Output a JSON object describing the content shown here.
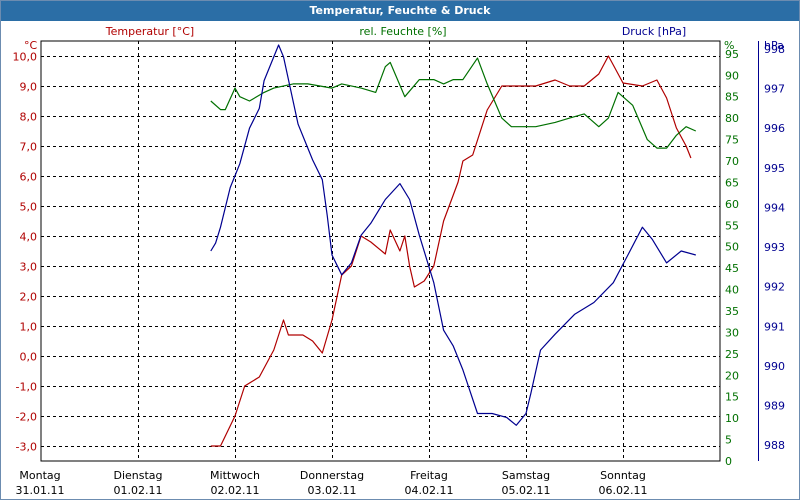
{
  "window": {
    "title": "Temperatur, Feuchte & Druck"
  },
  "colors": {
    "temperature": "#b00000",
    "humidity": "#007000",
    "pressure": "#000090",
    "grid": "#000000",
    "titlebar": "#2b6ea6"
  },
  "chart_data": {
    "type": "line",
    "title": "Temperatur, Feuchte & Druck",
    "grid": true,
    "x": {
      "categories": [
        {
          "day": "Montag",
          "date": "31.01.11"
        },
        {
          "day": "Dienstag",
          "date": "01.02.11"
        },
        {
          "day": "Mittwoch",
          "date": "02.02.11"
        },
        {
          "day": "Donnerstag",
          "date": "03.02.11"
        },
        {
          "day": "Freitag",
          "date": "04.02.11"
        },
        {
          "day": "Samstag",
          "date": "05.02.11"
        },
        {
          "day": "Sonntag",
          "date": "06.02.11"
        }
      ],
      "range_days": [
        0,
        7
      ]
    },
    "axes": {
      "temperature": {
        "label": "Temperatur [°C]",
        "unit": "°C",
        "ylim": [
          -3.5,
          10.5
        ],
        "ticks": [
          "10,0",
          "9,0",
          "8,0",
          "7,0",
          "6,0",
          "5,0",
          "4,0",
          "3,0",
          "2,0",
          "1,0",
          "0,0",
          "-1,0",
          "-2,0",
          "-3,0"
        ]
      },
      "humidity": {
        "label": "rel. Feuchte [%]",
        "unit": "%",
        "ylim": [
          0,
          98
        ],
        "ticks": [
          "95",
          "90",
          "85",
          "80",
          "75",
          "70",
          "65",
          "60",
          "55",
          "50",
          "45",
          "40",
          "35",
          "30",
          "25",
          "20",
          "15",
          "10",
          "5",
          "0"
        ]
      },
      "pressure": {
        "label": "Druck [hPa]",
        "unit": "hPa",
        "ylim": [
          987.6,
          998.2
        ],
        "ticks": [
          "998",
          "997",
          "996",
          "995",
          "994",
          "993",
          "992",
          "991",
          "990",
          "989",
          "988"
        ]
      }
    },
    "series": [
      {
        "name": "Temperatur [°C]",
        "axis": "temperature",
        "points": [
          [
            1.75,
            -3.0
          ],
          [
            1.85,
            -3.0
          ],
          [
            2.0,
            -2.0
          ],
          [
            2.1,
            -1.0
          ],
          [
            2.25,
            -0.7
          ],
          [
            2.4,
            0.2
          ],
          [
            2.5,
            1.2
          ],
          [
            2.55,
            0.7
          ],
          [
            2.7,
            0.7
          ],
          [
            2.8,
            0.5
          ],
          [
            2.9,
            0.1
          ],
          [
            3.0,
            1.2
          ],
          [
            3.1,
            2.7
          ],
          [
            3.2,
            3.0
          ],
          [
            3.3,
            4.0
          ],
          [
            3.4,
            3.8
          ],
          [
            3.55,
            3.4
          ],
          [
            3.6,
            4.2
          ],
          [
            3.7,
            3.5
          ],
          [
            3.75,
            4.0
          ],
          [
            3.8,
            3.0
          ],
          [
            3.85,
            2.3
          ],
          [
            3.95,
            2.5
          ],
          [
            4.05,
            3.0
          ],
          [
            4.15,
            4.5
          ],
          [
            4.3,
            5.8
          ],
          [
            4.35,
            6.5
          ],
          [
            4.45,
            6.7
          ],
          [
            4.6,
            8.2
          ],
          [
            4.75,
            9.0
          ],
          [
            4.9,
            9.0
          ],
          [
            5.1,
            9.0
          ],
          [
            5.3,
            9.2
          ],
          [
            5.45,
            9.0
          ],
          [
            5.6,
            9.0
          ],
          [
            5.75,
            9.4
          ],
          [
            5.85,
            10.0
          ],
          [
            5.9,
            9.7
          ],
          [
            6.0,
            9.1
          ],
          [
            6.2,
            9.0
          ],
          [
            6.35,
            9.2
          ],
          [
            6.45,
            8.6
          ],
          [
            6.55,
            7.6
          ],
          [
            6.65,
            7.0
          ],
          [
            6.7,
            6.6
          ]
        ]
      },
      {
        "name": "rel. Feuchte [%]",
        "axis": "humidity",
        "points": [
          [
            1.75,
            84
          ],
          [
            1.85,
            82
          ],
          [
            1.9,
            82
          ],
          [
            2.0,
            87
          ],
          [
            2.05,
            85
          ],
          [
            2.15,
            84
          ],
          [
            2.3,
            86
          ],
          [
            2.4,
            87
          ],
          [
            2.6,
            88
          ],
          [
            2.75,
            88
          ],
          [
            3.0,
            87
          ],
          [
            3.1,
            88
          ],
          [
            3.3,
            87
          ],
          [
            3.45,
            86
          ],
          [
            3.55,
            92
          ],
          [
            3.6,
            93
          ],
          [
            3.75,
            85
          ],
          [
            3.9,
            89
          ],
          [
            4.05,
            89
          ],
          [
            4.15,
            88
          ],
          [
            4.25,
            89
          ],
          [
            4.35,
            89
          ],
          [
            4.5,
            94
          ],
          [
            4.6,
            88
          ],
          [
            4.75,
            80
          ],
          [
            4.85,
            78
          ],
          [
            5.1,
            78
          ],
          [
            5.3,
            79
          ],
          [
            5.45,
            80
          ],
          [
            5.6,
            81
          ],
          [
            5.75,
            78
          ],
          [
            5.85,
            80
          ],
          [
            5.95,
            86
          ],
          [
            6.1,
            83
          ],
          [
            6.25,
            75
          ],
          [
            6.35,
            73
          ],
          [
            6.45,
            73
          ],
          [
            6.55,
            76
          ],
          [
            6.65,
            78
          ],
          [
            6.75,
            77
          ]
        ]
      },
      {
        "name": "Druck [hPa]",
        "axis": "pressure",
        "points": [
          [
            1.75,
            992.9
          ],
          [
            1.8,
            993.1
          ],
          [
            1.85,
            993.5
          ],
          [
            1.95,
            994.5
          ],
          [
            2.05,
            995.1
          ],
          [
            2.15,
            996.0
          ],
          [
            2.25,
            996.5
          ],
          [
            2.3,
            997.2
          ],
          [
            2.45,
            998.1
          ],
          [
            2.5,
            997.8
          ],
          [
            2.65,
            996.1
          ],
          [
            2.8,
            995.2
          ],
          [
            2.9,
            994.7
          ],
          [
            2.95,
            993.8
          ],
          [
            3.0,
            992.8
          ],
          [
            3.1,
            992.3
          ],
          [
            3.2,
            992.6
          ],
          [
            3.3,
            993.3
          ],
          [
            3.4,
            993.6
          ],
          [
            3.55,
            994.2
          ],
          [
            3.7,
            994.6
          ],
          [
            3.8,
            994.2
          ],
          [
            3.9,
            993.3
          ],
          [
            4.05,
            992.1
          ],
          [
            4.15,
            990.9
          ],
          [
            4.25,
            990.5
          ],
          [
            4.35,
            989.9
          ],
          [
            4.5,
            988.8
          ],
          [
            4.65,
            988.8
          ],
          [
            4.8,
            988.7
          ],
          [
            4.9,
            988.5
          ],
          [
            5.0,
            988.8
          ],
          [
            5.05,
            989.3
          ],
          [
            5.15,
            990.4
          ],
          [
            5.3,
            990.8
          ],
          [
            5.5,
            991.3
          ],
          [
            5.7,
            991.6
          ],
          [
            5.9,
            992.1
          ],
          [
            6.05,
            992.8
          ],
          [
            6.2,
            993.5
          ],
          [
            6.3,
            993.2
          ],
          [
            6.45,
            992.6
          ],
          [
            6.6,
            992.9
          ],
          [
            6.75,
            992.8
          ]
        ]
      }
    ]
  }
}
